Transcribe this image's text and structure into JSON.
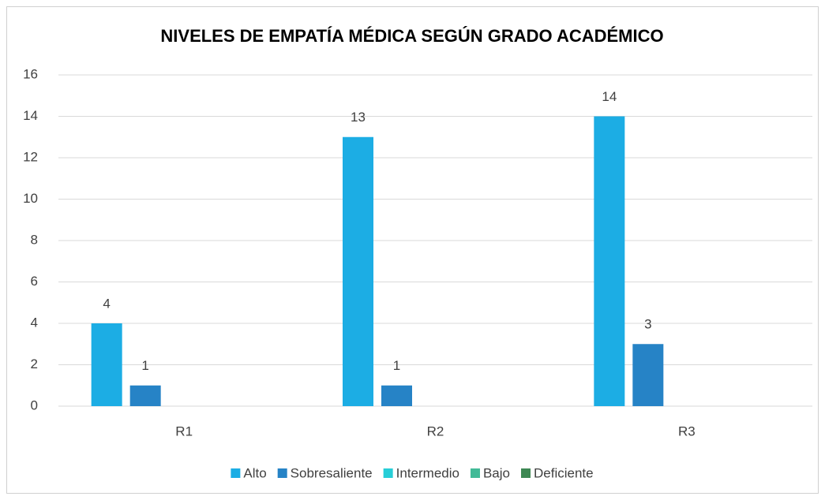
{
  "chart_data": {
    "type": "bar",
    "title": "NIVELES DE EMPATÍA MÉDICA SEGÚN GRADO ACADÉMICO",
    "categories": [
      "R1",
      "R2",
      "R3"
    ],
    "series": [
      {
        "name": "Alto",
        "color": "#1cade4",
        "values": [
          4,
          13,
          14
        ]
      },
      {
        "name": "Sobresaliente",
        "color": "#2683c6",
        "values": [
          1,
          1,
          3
        ]
      },
      {
        "name": "Intermedio",
        "color": "#27ced7",
        "values": [
          0,
          0,
          0
        ]
      },
      {
        "name": "Bajo",
        "color": "#42ba97",
        "values": [
          0,
          0,
          0
        ]
      },
      {
        "name": "Deficiente",
        "color": "#3e8853",
        "values": [
          0,
          0,
          0
        ]
      }
    ],
    "ylim": [
      0,
      16
    ],
    "yticks": [
      0,
      2,
      4,
      6,
      8,
      10,
      12,
      14,
      16
    ],
    "grid": true,
    "legend": "bottom"
  }
}
